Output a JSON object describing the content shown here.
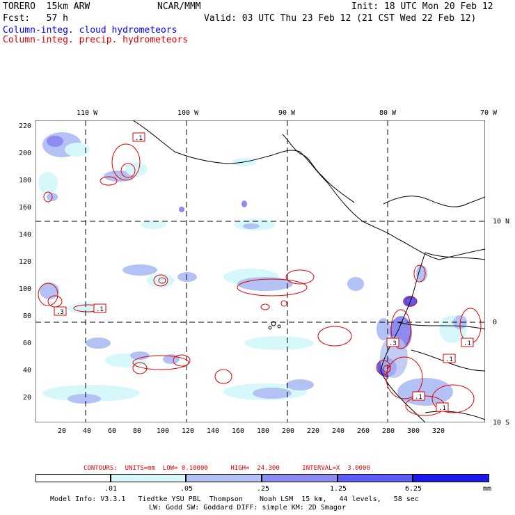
{
  "header": {
    "model": "TORERO  15km ARW",
    "org": "NCAR/MMM",
    "init": "Init: 18 UTC Mon 20 Feb 12",
    "fcst": "Fcst:   57 h",
    "valid": "Valid: 03 UTC Thu 23 Feb 12 (21 CST Wed 22 Feb 12)",
    "legend_blue": "Column-integ. cloud hydrometeors",
    "legend_red": "Column-integ. precip. hydrometeors"
  },
  "top_lon_labels": [
    "110 W",
    "100 W",
    "90 W",
    "80 W",
    "70 W"
  ],
  "left_ticks": [
    "220",
    "200",
    "180",
    "160",
    "140",
    "120",
    "100",
    "80",
    "60",
    "40",
    "20"
  ],
  "right_lat_labels": [
    "10 N",
    "0",
    "10 S"
  ],
  "bottom_ticks": [
    "20",
    "40",
    "60",
    "80",
    "100",
    "120",
    "140",
    "160",
    "180",
    "200",
    "220",
    "240",
    "260",
    "280",
    "300",
    "320"
  ],
  "contour_labels": [
    ".1",
    ".3",
    ".1",
    ".1",
    ".3",
    ".1",
    ".1",
    ".1"
  ],
  "contours_info": {
    "text": "CONTOURS:  UNITS=mm  LOW= 0.10000      HIGH=  24.300      INTERVAL=X  3.0000"
  },
  "colorbar": {
    "labels": [
      ".01",
      ".05",
      ".25",
      "1.25",
      "6.25"
    ],
    "unit": "mm",
    "colors": [
      "#ffffff",
      "#d7f8fb",
      "#b3c1f4",
      "#8c8cf0",
      "#5c5cf4",
      "#1a1ae8"
    ]
  },
  "footer": {
    "line1": "Model Info: V3.3.1   Tiedtke YSU PBL  Thompson    Noah LSM  15 km,   44 levels,   58 sec",
    "line2": "LW: Godd SW: Goddard DIFF: simple KM: 2D Smagor"
  }
}
